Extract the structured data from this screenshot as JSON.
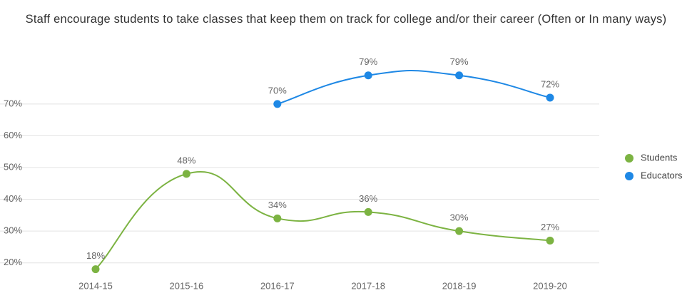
{
  "chart_data": {
    "type": "line",
    "title": "Staff encourage students to take classes that keep them on track for college and/or their career (Often or In many ways)",
    "categories": [
      "2014-15",
      "2015-16",
      "2016-17",
      "2017-18",
      "2018-19",
      "2019-20"
    ],
    "series": [
      {
        "name": "Students",
        "color": "#7cb342",
        "values": [
          18,
          48,
          34,
          36,
          30,
          27
        ],
        "value_labels": [
          "18%",
          "48%",
          "34%",
          "36%",
          "30%",
          "27%"
        ]
      },
      {
        "name": "Educators",
        "color": "#1e88e5",
        "values": [
          null,
          null,
          70,
          79,
          79,
          72
        ],
        "value_labels": [
          null,
          null,
          "70%",
          "79%",
          "79%",
          "72%"
        ]
      }
    ],
    "ylim": [
      15,
      85
    ],
    "yticks": [
      {
        "value": 20,
        "label": "20%"
      },
      {
        "value": 30,
        "label": "30%"
      },
      {
        "value": 40,
        "label": "40%"
      },
      {
        "value": 50,
        "label": "50%"
      },
      {
        "value": 60,
        "label": "60%"
      },
      {
        "value": 70,
        "label": "70%"
      }
    ],
    "grid": true,
    "legend": "right"
  }
}
